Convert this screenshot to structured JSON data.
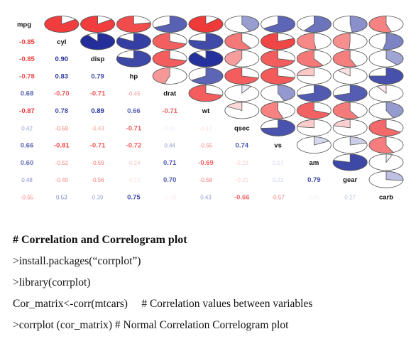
{
  "chart_data": {
    "type": "correlogram",
    "upper_style": "pie",
    "lower_style": "number",
    "variables": [
      "mpg",
      "cyl",
      "disp",
      "hp",
      "drat",
      "wt",
      "qsec",
      "vs",
      "am",
      "gear",
      "carb"
    ],
    "lower_labels": [
      [],
      [
        "-0.85"
      ],
      [
        "-0.85",
        "0.90"
      ],
      [
        "-0.78",
        "0.83",
        "0.79"
      ],
      [
        "0.68",
        "-0.70",
        "-0.71",
        "-0.45"
      ],
      [
        "-0.87",
        "0.78",
        "0.89",
        "0.66",
        "-0.71"
      ],
      [
        "0.42",
        "-0.59",
        "-0.43",
        "-0.71",
        "0.09",
        "-0.17"
      ],
      [
        "0.66",
        "-0.81",
        "-0.71",
        "-0.72",
        "0.44",
        "-0.55",
        "0.74"
      ],
      [
        "0.60",
        "-0.52",
        "-0.59",
        "-0.24",
        "0.71",
        "-0.69",
        "-0.23",
        "0.17"
      ],
      [
        "0.48",
        "-0.49",
        "-0.56",
        "-0.13",
        "0.70",
        "-0.58",
        "-0.21",
        "0.21",
        "0.79"
      ],
      [
        "-0.55",
        "0.53",
        "0.39",
        "0.75",
        "-0.09",
        "0.43",
        "-0.66",
        "-0.57",
        "0.06",
        "0.27"
      ]
    ],
    "matrix": [
      [
        1.0,
        -0.85,
        -0.85,
        -0.78,
        0.68,
        -0.87,
        0.42,
        0.66,
        0.6,
        0.48,
        -0.55
      ],
      [
        -0.85,
        1.0,
        0.9,
        0.83,
        -0.7,
        0.78,
        -0.59,
        -0.81,
        -0.52,
        -0.49,
        0.53
      ],
      [
        -0.85,
        0.9,
        1.0,
        0.79,
        -0.71,
        0.89,
        -0.43,
        -0.71,
        -0.59,
        -0.56,
        0.39
      ],
      [
        -0.78,
        0.83,
        0.79,
        1.0,
        -0.45,
        0.66,
        -0.71,
        -0.72,
        -0.24,
        -0.13,
        0.75
      ],
      [
        0.68,
        -0.7,
        -0.71,
        -0.45,
        1.0,
        -0.71,
        0.09,
        0.44,
        0.71,
        0.7,
        -0.09
      ],
      [
        -0.87,
        0.78,
        0.89,
        0.66,
        -0.71,
        1.0,
        -0.17,
        -0.55,
        -0.69,
        -0.58,
        0.43
      ],
      [
        0.42,
        -0.59,
        -0.43,
        -0.71,
        0.09,
        -0.17,
        1.0,
        0.74,
        -0.23,
        -0.21,
        -0.66
      ],
      [
        0.66,
        -0.81,
        -0.71,
        -0.72,
        0.44,
        -0.55,
        0.74,
        1.0,
        0.17,
        0.21,
        -0.57
      ],
      [
        0.6,
        -0.52,
        -0.59,
        -0.24,
        0.71,
        -0.69,
        -0.23,
        0.17,
        1.0,
        0.79,
        0.06
      ],
      [
        0.48,
        -0.49,
        -0.56,
        -0.13,
        0.7,
        -0.58,
        -0.21,
        0.21,
        0.79,
        1.0,
        0.27
      ],
      [
        -0.55,
        0.53,
        0.39,
        0.75,
        -0.09,
        0.43,
        -0.66,
        -0.57,
        0.06,
        0.27,
        1.0
      ]
    ],
    "colors": {
      "positive": "#0a1790",
      "negative": "#ee1b1b",
      "neutral": "#ffffff"
    }
  },
  "code_block": {
    "heading": "# Correlation and Correlogram plot",
    "lines": [
      ">install.packages(“corrplot”)",
      ">library(corrplot)",
      "Cor_matrix<-corr(mtcars)     # Correlation values between variables",
      ">corrplot (cor_matrix) # Normal Correlation Correlogram plot"
    ]
  }
}
